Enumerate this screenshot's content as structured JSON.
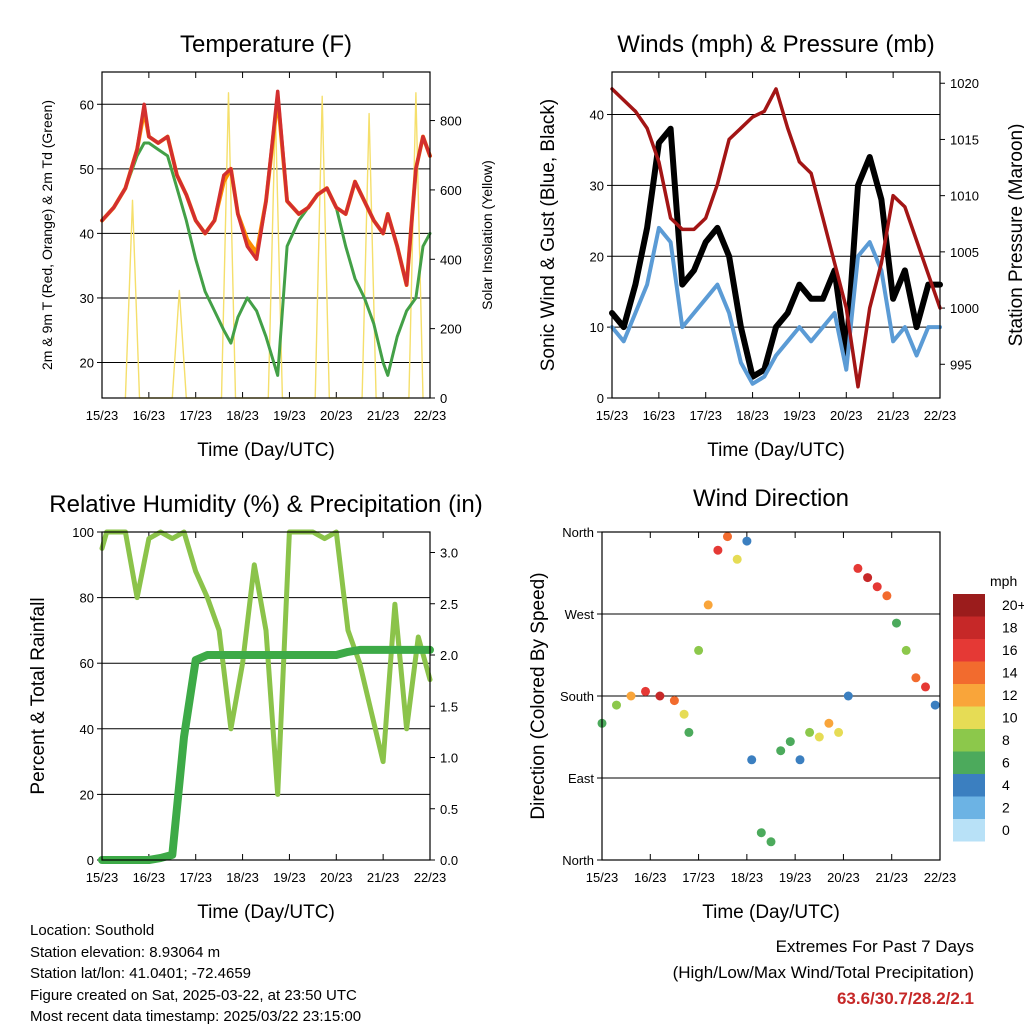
{
  "x_ticks": [
    "15/23",
    "16/23",
    "17/23",
    "18/23",
    "19/23",
    "20/23",
    "21/23",
    "22/23"
  ],
  "panels": {
    "temperature": {
      "title": "Temperature (F)",
      "xlabel": "Time (Day/UTC)",
      "ylabel_left": "2m & 9m T (Red, Orange) & 2m Td (Green)",
      "ylabel_right": "Solar Insolation (Yellow)"
    },
    "winds": {
      "title": "Winds (mph) & Pressure (mb)",
      "xlabel": "Time (Day/UTC)",
      "ylabel_left": "Sonic Wind & Gust (Blue, Black)",
      "ylabel_right": "Station Pressure (Maroon)"
    },
    "humidity": {
      "title": "Relative Humidity (%) & Precipitation (in)",
      "xlabel": "Time (Day/UTC)",
      "ylabel_left": "Percent & Total Rainfall"
    },
    "direction": {
      "title": "Wind Direction",
      "xlabel": "Time (Day/UTC)",
      "ylabel_left": "Direction (Colored By Speed)",
      "colorbar_title": "mph"
    }
  },
  "colorbar": {
    "labels": [
      "20+",
      "18",
      "16",
      "14",
      "12",
      "10",
      "8",
      "6",
      "4",
      "2",
      "0"
    ],
    "colors": [
      "#9b1c1c",
      "#c62828",
      "#e53935",
      "#f26b2e",
      "#f9a53a",
      "#e6dc55",
      "#8cc84b",
      "#4caa5c",
      "#3b7fc0",
      "#6cb3e4",
      "#b8e1f7"
    ]
  },
  "info": {
    "location": "Location: Southold",
    "elevation": "Station elevation: 8.93064 m",
    "latlon": "Station lat/lon: 41.0401; -72.4659",
    "created": "Figure created on Sat, 2025-03-22, at 23:50 UTC",
    "recent": "Most recent data timestamp: 2025/03/22 23:15:00"
  },
  "extremes": {
    "title": "Extremes For Past 7 Days",
    "subtitle": "(High/Low/Max Wind/Total Precipitation)",
    "values": "63.6/30.7/28.2/2.1"
  },
  "chart_data": [
    {
      "type": "line",
      "title": "Temperature (F)",
      "xlabel": "Time (Day/UTC)",
      "ylabel": "2m & 9m T (Red, Orange) & 2m Td (Green)",
      "ylabel_right": "Solar Insolation (Yellow)",
      "x_ticks": [
        "15/23",
        "16/23",
        "17/23",
        "18/23",
        "19/23",
        "20/23",
        "21/23",
        "22/23"
      ],
      "ylim": [
        14.5,
        65
      ],
      "yticks": [
        20,
        30,
        40,
        50,
        60
      ],
      "ylim_right": [
        0,
        940
      ],
      "yticks_right": [
        0,
        200,
        400,
        600,
        800
      ],
      "x": [
        0,
        0.25,
        0.5,
        0.75,
        0.9,
        1.0,
        1.2,
        1.4,
        1.6,
        1.8,
        2.0,
        2.2,
        2.4,
        2.6,
        2.75,
        2.9,
        3.1,
        3.3,
        3.5,
        3.75,
        3.95,
        4.2,
        4.4,
        4.6,
        4.8,
        5.0,
        5.2,
        5.4,
        5.6,
        5.8,
        6.0,
        6.1,
        6.3,
        6.5,
        6.7,
        6.85,
        7.0
      ],
      "series": [
        {
          "name": "2m T",
          "color": "#d32f2f",
          "values": [
            42,
            44,
            47,
            53,
            60,
            55,
            54,
            55,
            49,
            46,
            42,
            40,
            42,
            49,
            50,
            43,
            38,
            36,
            45,
            62,
            45,
            43,
            44,
            46,
            47,
            44,
            43,
            48,
            45,
            42,
            40,
            43,
            38,
            32,
            50,
            55,
            52
          ]
        },
        {
          "name": "9m T",
          "color": "#fb8c00",
          "values": [
            42,
            44,
            47,
            53,
            59,
            55,
            54,
            55,
            49,
            46,
            42,
            40,
            42,
            48,
            50,
            43,
            39,
            37,
            45,
            61,
            45,
            43,
            44,
            46,
            47,
            44,
            43,
            48,
            45,
            42,
            40,
            43,
            38,
            32,
            50,
            55,
            52
          ]
        },
        {
          "name": "2m Td",
          "color": "#43a047",
          "values": [
            42,
            44,
            47,
            52,
            54,
            54,
            53,
            52,
            47,
            42,
            36,
            31,
            28,
            25,
            23,
            27,
            30,
            28,
            24,
            18,
            38,
            42,
            44,
            46,
            47,
            44,
            38,
            33,
            30,
            26,
            20,
            18,
            24,
            28,
            30,
            38,
            40
          ]
        }
      ],
      "solar_series": {
        "name": "Solar Insolation",
        "color": "#f5df6b",
        "x": [
          0.5,
          0.65,
          0.8,
          1.5,
          1.65,
          1.8,
          2.55,
          2.7,
          2.85,
          3.55,
          3.7,
          3.85,
          4.55,
          4.7,
          4.85,
          5.55,
          5.7,
          5.85,
          6.55,
          6.7,
          6.85
        ],
        "values": [
          0,
          570,
          0,
          0,
          310,
          0,
          0,
          880,
          0,
          0,
          830,
          0,
          0,
          870,
          0,
          0,
          820,
          0,
          0,
          880,
          0
        ]
      }
    },
    {
      "type": "line",
      "title": "Winds (mph) & Pressure (mb)",
      "xlabel": "Time (Day/UTC)",
      "ylabel": "Sonic Wind & Gust (Blue, Black)",
      "ylabel_right": "Station Pressure (Maroon)",
      "x_ticks": [
        "15/23",
        "16/23",
        "17/23",
        "18/23",
        "19/23",
        "20/23",
        "21/23",
        "22/23"
      ],
      "ylim": [
        0,
        46
      ],
      "yticks": [
        0,
        10,
        20,
        30,
        40
      ],
      "ylim_right": [
        992,
        1021
      ],
      "yticks_right": [
        995,
        1000,
        1005,
        1010,
        1015,
        1020
      ],
      "x": [
        0,
        0.25,
        0.5,
        0.75,
        1.0,
        1.25,
        1.5,
        1.75,
        2.0,
        2.25,
        2.5,
        2.75,
        3.0,
        3.25,
        3.5,
        3.75,
        4.0,
        4.25,
        4.5,
        4.75,
        5.0,
        5.25,
        5.5,
        5.75,
        6.0,
        6.25,
        6.5,
        6.75,
        7.0
      ],
      "series": [
        {
          "name": "Sonic Wind",
          "color": "#5b9bd5",
          "values": [
            10,
            8,
            12,
            16,
            24,
            22,
            10,
            12,
            14,
            16,
            12,
            5,
            2,
            3,
            6,
            8,
            10,
            8,
            10,
            12,
            4,
            20,
            22,
            18,
            8,
            10,
            6,
            10,
            10
          ]
        },
        {
          "name": "Gust",
          "color": "#000000",
          "values": [
            12,
            10,
            16,
            24,
            36,
            38,
            16,
            18,
            22,
            24,
            20,
            10,
            3,
            4,
            10,
            12,
            16,
            14,
            14,
            18,
            6,
            30,
            34,
            28,
            14,
            18,
            10,
            16,
            16
          ]
        },
        {
          "name": "Station Pressure",
          "color": "#a31515",
          "values": [
            1019.5,
            1018.5,
            1017.5,
            1016,
            1013,
            1008,
            1007,
            1007,
            1008,
            1011,
            1015,
            1016,
            1017,
            1017.5,
            1019.5,
            1016,
            1013,
            1012,
            1008,
            1004,
            1000,
            993,
            1000,
            1004,
            1010,
            1009,
            1006,
            1003,
            1000
          ]
        }
      ]
    },
    {
      "type": "line",
      "title": "Relative Humidity (%) & Precipitation (in)",
      "xlabel": "Time (Day/UTC)",
      "ylabel": "Percent & Total Rainfall",
      "x_ticks": [
        "15/23",
        "16/23",
        "17/23",
        "18/23",
        "19/23",
        "20/23",
        "21/23",
        "22/23"
      ],
      "ylim": [
        0,
        100
      ],
      "yticks": [
        0,
        20,
        40,
        60,
        80,
        100
      ],
      "ylim_right": [
        0,
        3.2
      ],
      "yticks_right": [
        0.0,
        0.5,
        1.0,
        1.5,
        2.0,
        2.5,
        3.0
      ],
      "x": [
        0,
        0.1,
        0.25,
        0.5,
        0.75,
        1.0,
        1.25,
        1.5,
        1.75,
        2.0,
        2.25,
        2.5,
        2.75,
        3.0,
        3.25,
        3.5,
        3.75,
        4.0,
        4.25,
        4.5,
        4.75,
        5.0,
        5.25,
        5.5,
        5.75,
        6.0,
        6.25,
        6.5,
        6.75,
        7.0
      ],
      "series": [
        {
          "name": "Relative Humidity",
          "color": "#8bc34a",
          "values": [
            95,
            100,
            100,
            100,
            80,
            98,
            100,
            98,
            100,
            88,
            80,
            70,
            40,
            60,
            90,
            70,
            20,
            100,
            100,
            100,
            98,
            100,
            70,
            60,
            45,
            30,
            78,
            40,
            68,
            55
          ]
        },
        {
          "name": "Total Precipitation",
          "color": "#3daa47",
          "values": [
            0,
            0,
            0,
            0,
            0,
            0,
            0.02,
            0.05,
            1.2,
            1.95,
            2.0,
            2.0,
            2.0,
            2.0,
            2.0,
            2.0,
            2.0,
            2.0,
            2.0,
            2.0,
            2.0,
            2.0,
            2.03,
            2.05,
            2.05,
            2.05,
            2.05,
            2.05,
            2.05,
            2.05
          ]
        }
      ]
    },
    {
      "type": "scatter",
      "title": "Wind Direction",
      "xlabel": "Time (Day/UTC)",
      "ylabel": "Direction (Colored By Speed)",
      "x_ticks": [
        "15/23",
        "16/23",
        "17/23",
        "18/23",
        "19/23",
        "20/23",
        "21/23",
        "22/23"
      ],
      "y_ticks": [
        "North",
        "East",
        "South",
        "West",
        "North"
      ],
      "ylim": [
        0,
        360
      ],
      "colorbar_title": "mph",
      "x": [
        0,
        0.3,
        0.6,
        0.9,
        1.2,
        1.5,
        1.7,
        1.8,
        2.0,
        2.2,
        2.4,
        2.6,
        2.8,
        3.0,
        3.1,
        3.3,
        3.5,
        3.7,
        3.9,
        4.1,
        4.3,
        4.5,
        4.7,
        4.9,
        5.1,
        5.3,
        5.5,
        5.7,
        5.9,
        6.1,
        6.3,
        6.5,
        6.7,
        6.9
      ],
      "values": [
        150,
        170,
        180,
        185,
        180,
        175,
        160,
        140,
        230,
        280,
        340,
        355,
        330,
        350,
        110,
        30,
        20,
        120,
        130,
        110,
        140,
        135,
        150,
        140,
        180,
        320,
        310,
        300,
        290,
        260,
        230,
        200,
        190,
        170
      ],
      "speed": [
        6,
        8,
        12,
        16,
        18,
        14,
        10,
        5,
        8,
        12,
        16,
        14,
        10,
        4,
        3,
        5,
        6,
        6,
        6,
        4,
        8,
        10,
        12,
        10,
        3,
        16,
        18,
        16,
        14,
        6,
        8,
        14,
        16,
        4
      ]
    }
  ]
}
